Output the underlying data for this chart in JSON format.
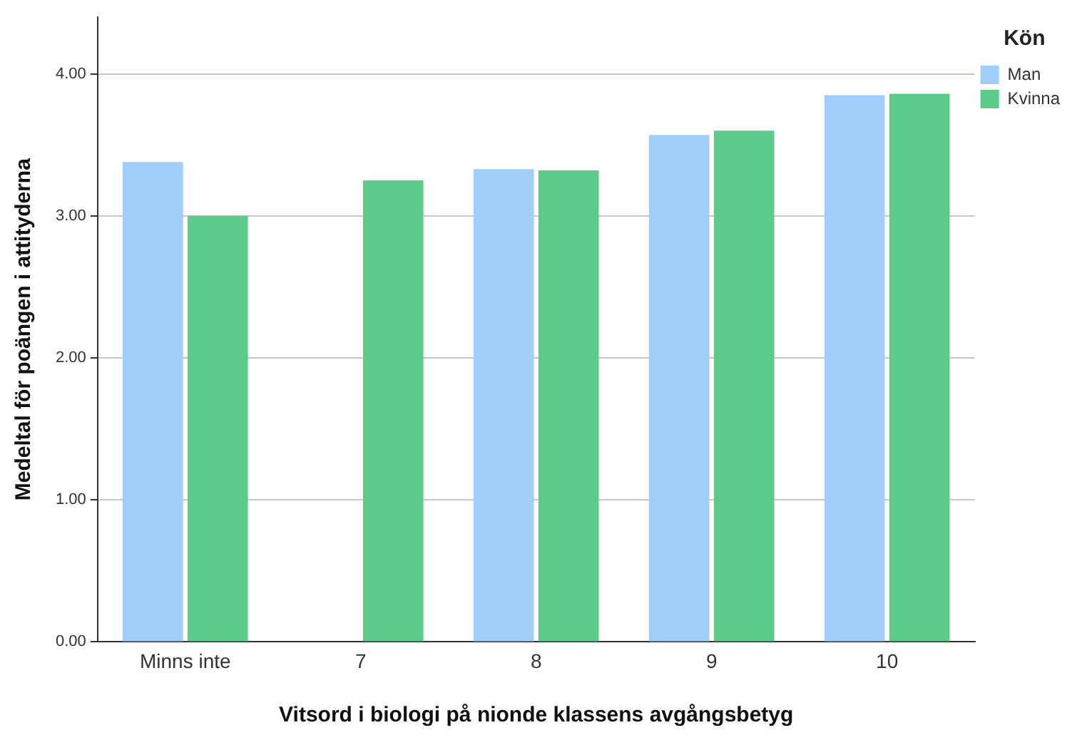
{
  "chart_data": {
    "type": "bar",
    "xlabel": "Vitsord i biologi på nionde klassens avgångsbetyg",
    "ylabel": "Medeltal för poängen i attityderna",
    "legend_title": "Kön",
    "categories": [
      "Minns inte",
      "7",
      "8",
      "9",
      "10"
    ],
    "series": [
      {
        "name": "Man",
        "color": "#a1cdfa",
        "values": [
          3.38,
          null,
          3.33,
          3.57,
          3.85
        ]
      },
      {
        "name": "Kvinna",
        "color": "#5ccb8a",
        "values": [
          3.0,
          3.25,
          3.32,
          3.6,
          3.86
        ]
      }
    ],
    "ylim": [
      0,
      4.4
    ],
    "yticks": [
      {
        "value": 0,
        "label": "0.00"
      },
      {
        "value": 1,
        "label": "1.00"
      },
      {
        "value": 2,
        "label": "2.00"
      },
      {
        "value": 3,
        "label": "3.00"
      },
      {
        "value": 4,
        "label": "4.00"
      }
    ],
    "grid": "y",
    "legend": "top right"
  }
}
